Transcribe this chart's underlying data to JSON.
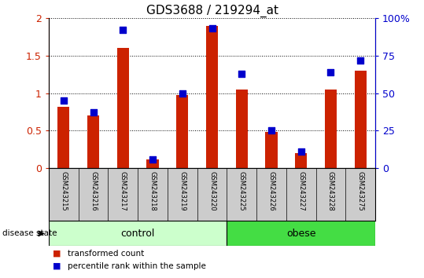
{
  "title": "GDS3688 / 219294_at",
  "samples": [
    "GSM243215",
    "GSM243216",
    "GSM243217",
    "GSM243218",
    "GSM243219",
    "GSM243220",
    "GSM243225",
    "GSM243226",
    "GSM243227",
    "GSM243228",
    "GSM243275"
  ],
  "transformed_count": [
    0.82,
    0.7,
    1.6,
    0.12,
    0.97,
    1.9,
    1.05,
    0.48,
    0.2,
    1.05,
    1.3
  ],
  "percentile_rank_pct": [
    45,
    37,
    92,
    6,
    50,
    93,
    63,
    25,
    11,
    64,
    72
  ],
  "n_control": 6,
  "n_obese": 5,
  "bar_color": "#cc2200",
  "dot_color": "#0000cc",
  "bar_width": 0.4,
  "dot_size": 28,
  "ylim_left": [
    0,
    2
  ],
  "ylim_right": [
    0,
    100
  ],
  "yticks_left": [
    0,
    0.5,
    1.0,
    1.5,
    2.0
  ],
  "ytick_labels_left": [
    "0",
    "0.5",
    "1",
    "1.5",
    "2"
  ],
  "yticks_right": [
    0,
    25,
    50,
    75,
    100
  ],
  "ytick_labels_right": [
    "0",
    "25",
    "50",
    "75",
    "100%"
  ],
  "control_color": "#ccffcc",
  "obese_color": "#44dd44",
  "tick_area_color": "#cccccc",
  "title_fontsize": 11,
  "legend_labels": [
    "transformed count",
    "percentile rank within the sample"
  ],
  "legend_colors": [
    "#cc2200",
    "#0000cc"
  ],
  "disease_state_label": "disease state",
  "figsize": [
    5.39,
    3.54
  ],
  "dpi": 100
}
